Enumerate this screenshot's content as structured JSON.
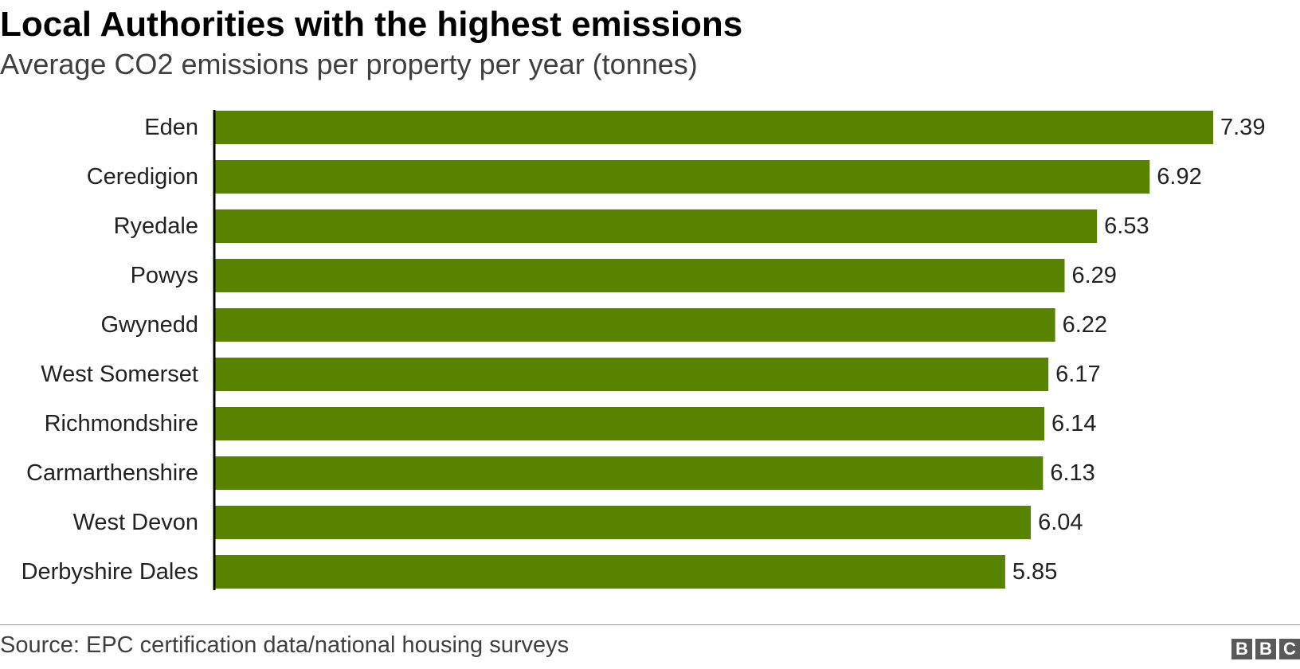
{
  "header": {
    "title": "Local Authorities with the highest emissions",
    "subtitle": "Average CO2 emissions per property per year (tonnes)"
  },
  "footer": {
    "source": "Source: EPC certification data/national housing surveys",
    "logo_letters": [
      "B",
      "B",
      "C"
    ]
  },
  "colors": {
    "bar": "#588300",
    "axis": "#000000",
    "text": "#222222"
  },
  "chart_data": {
    "type": "bar",
    "orientation": "horizontal",
    "title": "Local Authorities with the highest emissions",
    "subtitle": "Average CO2 emissions per property per year (tonnes)",
    "xlabel": "",
    "ylabel": "",
    "xlim": [
      0,
      7.39
    ],
    "grid": false,
    "legend": "none",
    "data_labels": true,
    "categories": [
      "Eden",
      "Ceredigion",
      "Ryedale",
      "Powys",
      "Gwynedd",
      "West Somerset",
      "Richmondshire",
      "Carmarthenshire",
      "West Devon",
      "Derbyshire Dales"
    ],
    "values": [
      7.39,
      6.92,
      6.53,
      6.29,
      6.22,
      6.17,
      6.14,
      6.13,
      6.04,
      5.85
    ]
  }
}
